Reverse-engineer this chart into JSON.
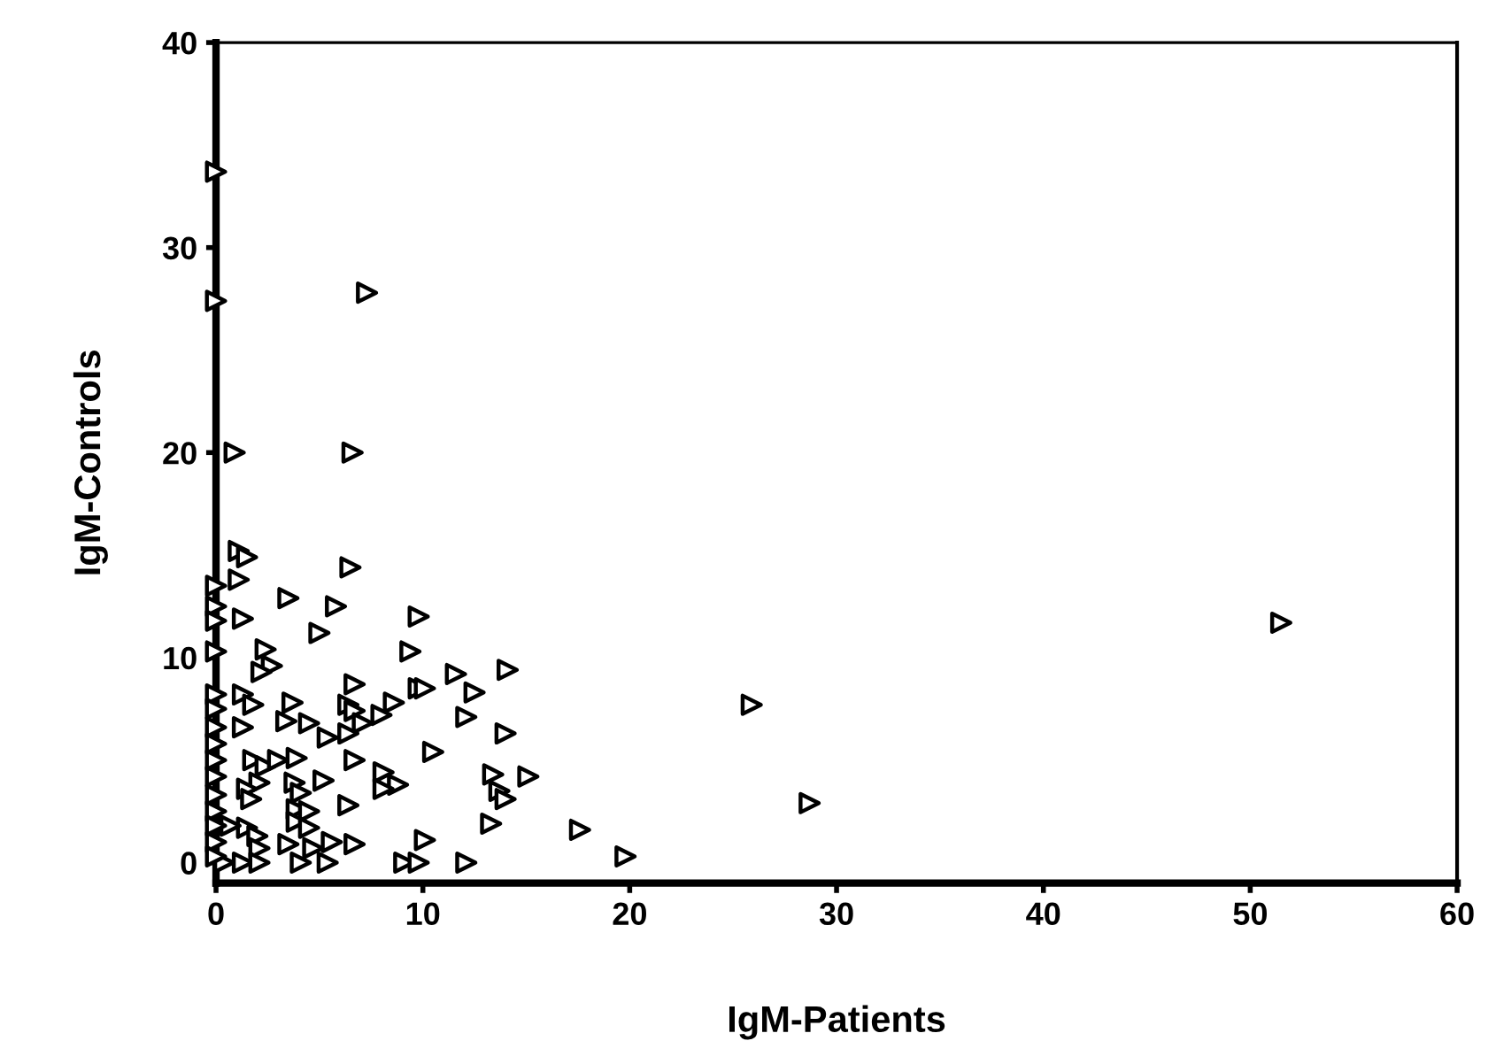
{
  "chart_data": {
    "type": "scatter",
    "xlabel": "IgM-Patients",
    "ylabel": "IgM-Controls",
    "xlim": [
      0,
      60
    ],
    "ylim": [
      -1,
      40
    ],
    "xticks": [
      0,
      10,
      20,
      30,
      40,
      50,
      60
    ],
    "yticks": [
      0,
      10,
      20,
      30,
      40
    ],
    "grid": false,
    "marker": "triangle",
    "series": [
      {
        "color": "#000000",
        "x": [
          0,
          0,
          7.3,
          0.9,
          6.6,
          51.5,
          25.9,
          28.7,
          19.8,
          1.1,
          1.5,
          1.1,
          1.3,
          3.5,
          5.8,
          5.0,
          6.5,
          9.8,
          9.4,
          2.4,
          2.7,
          2.2,
          6.7,
          9.8,
          10.1,
          11.6,
          12.5,
          14.1,
          1.3,
          1.8,
          3.7,
          6.4,
          6.7,
          8.6,
          8.0,
          7.1,
          3.4,
          4.5,
          5.4,
          6.4,
          1.3,
          12.1,
          14.0,
          10.5,
          6.7,
          3.9,
          1.8,
          2.4,
          3.0,
          8.1,
          8.8,
          8.1,
          5.2,
          3.8,
          4.1,
          2.1,
          1.5,
          1.7,
          13.4,
          15.1,
          13.7,
          14.0,
          6.4,
          3.9,
          4.5,
          3.9,
          4.5,
          13.3,
          17.6,
          1.5,
          2.0,
          0.7,
          3.5,
          5.6,
          6.7,
          10.1,
          4.7,
          2.1,
          0.4,
          1.3,
          2.1,
          4.1,
          5.4,
          9.1,
          9.8,
          12.1,
          0,
          0,
          0,
          0,
          0,
          0,
          0,
          0,
          0,
          0,
          0,
          0,
          0,
          0,
          0
        ],
        "values": [
          33.7,
          27.4,
          27.8,
          20.0,
          20.0,
          11.7,
          7.7,
          2.9,
          0.3,
          15.2,
          14.9,
          13.8,
          11.9,
          12.9,
          12.5,
          11.2,
          14.4,
          12.0,
          10.3,
          10.4,
          9.6,
          9.3,
          8.7,
          8.5,
          8.5,
          9.2,
          8.3,
          9.4,
          8.2,
          7.7,
          7.8,
          7.7,
          7.4,
          7.8,
          7.2,
          6.8,
          6.9,
          6.8,
          6.1,
          6.3,
          6.6,
          7.1,
          6.3,
          5.4,
          5.0,
          5.1,
          5.0,
          4.7,
          5.0,
          4.4,
          3.8,
          3.6,
          4.0,
          3.9,
          3.4,
          3.9,
          3.6,
          3.1,
          4.3,
          4.2,
          3.5,
          3.1,
          2.8,
          2.6,
          2.5,
          2.0,
          1.7,
          1.9,
          1.6,
          1.7,
          1.3,
          1.8,
          0.9,
          1.0,
          0.9,
          1.1,
          0.7,
          0.7,
          0,
          0,
          0,
          0,
          0,
          0,
          0,
          0,
          13.5,
          12.5,
          11.8,
          10.3,
          8.2,
          7.5,
          6.6,
          5.8,
          5.0,
          4.2,
          3.3,
          2.5,
          1.8,
          1.0,
          0.3
        ]
      }
    ]
  }
}
